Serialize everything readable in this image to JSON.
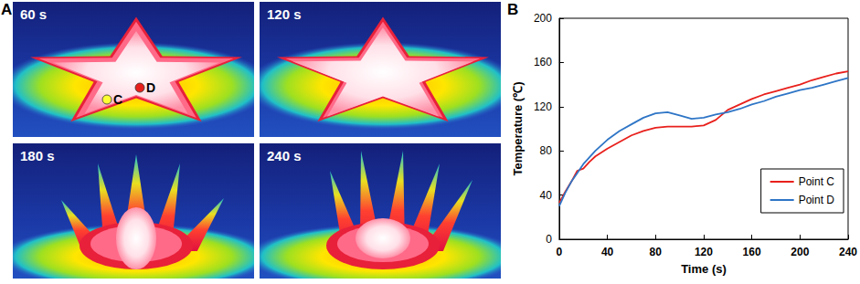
{
  "panel_a": {
    "label": "A",
    "frames": [
      {
        "label": "60 s",
        "points": [
          {
            "label": "C",
            "color": "#ffff33"
          },
          {
            "label": "D",
            "color": "#e8201c"
          }
        ]
      },
      {
        "label": "120 s"
      },
      {
        "label": "180 s"
      },
      {
        "label": "240 s"
      }
    ]
  },
  "chart_data": {
    "type": "line",
    "label": "B",
    "x_label": "Time (s)",
    "y_label": "Temperature (℃)",
    "x": [
      0,
      5,
      10,
      15,
      20,
      25,
      30,
      40,
      50,
      60,
      70,
      80,
      90,
      100,
      110,
      120,
      130,
      140,
      150,
      160,
      170,
      180,
      190,
      200,
      210,
      220,
      230,
      240
    ],
    "series": [
      {
        "name": "Point C",
        "color": "#e8201c",
        "values": [
          33,
          43,
          52,
          62,
          64,
          70,
          75,
          82,
          88,
          94,
          98,
          101,
          102,
          102,
          102,
          103,
          108,
          117,
          122,
          127,
          131,
          134,
          137,
          140,
          144,
          147,
          150,
          152
        ]
      },
      {
        "name": "Point D",
        "color": "#2e75c6",
        "values": [
          30,
          42,
          52,
          60,
          68,
          74,
          80,
          90,
          98,
          104,
          110,
          114,
          115,
          112,
          109,
          110,
          113,
          115,
          118,
          122,
          125,
          129,
          132,
          135,
          137,
          140,
          143,
          146
        ]
      }
    ],
    "xlim": [
      0,
      240
    ],
    "xticks": [
      0,
      40,
      80,
      120,
      160,
      200,
      240
    ],
    "ylim": [
      0,
      200
    ],
    "yticks": [
      0,
      40,
      80,
      120,
      160,
      200
    ],
    "grid": false,
    "legend": "lower right"
  }
}
